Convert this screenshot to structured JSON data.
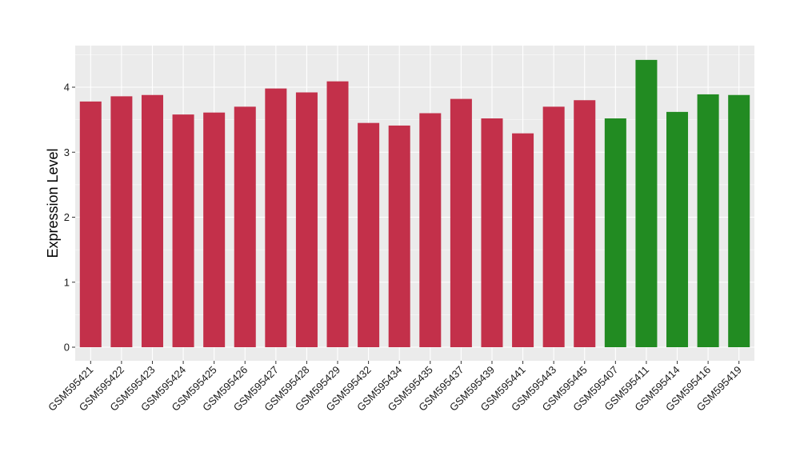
{
  "chart_data": {
    "type": "bar",
    "title": "",
    "xlabel": "",
    "ylabel": "Expression Level",
    "ylim": [
      -0.2,
      4.65
    ],
    "yticks": [
      0,
      1,
      2,
      3,
      4
    ],
    "grid": true,
    "legend": "none",
    "colors": {
      "group1": "#c3304a",
      "group2": "#228b22",
      "panel": "#ebebeb"
    },
    "categories": [
      "GSM595421",
      "GSM595422",
      "GSM595423",
      "GSM595424",
      "GSM595425",
      "GSM595426",
      "GSM595427",
      "GSM595428",
      "GSM595429",
      "GSM595432",
      "GSM595434",
      "GSM595435",
      "GSM595437",
      "GSM595439",
      "GSM595441",
      "GSM595443",
      "GSM595445",
      "GSM595407",
      "GSM595411",
      "GSM595414",
      "GSM595416",
      "GSM595419"
    ],
    "values": [
      3.78,
      3.86,
      3.88,
      3.58,
      3.61,
      3.7,
      3.98,
      3.92,
      4.09,
      3.45,
      3.41,
      3.6,
      3.82,
      3.52,
      3.29,
      3.7,
      3.8,
      3.52,
      4.42,
      3.62,
      3.89,
      3.88
    ],
    "groups": [
      "group1",
      "group1",
      "group1",
      "group1",
      "group1",
      "group1",
      "group1",
      "group1",
      "group1",
      "group1",
      "group1",
      "group1",
      "group1",
      "group1",
      "group1",
      "group1",
      "group1",
      "group2",
      "group2",
      "group2",
      "group2",
      "group2"
    ]
  }
}
